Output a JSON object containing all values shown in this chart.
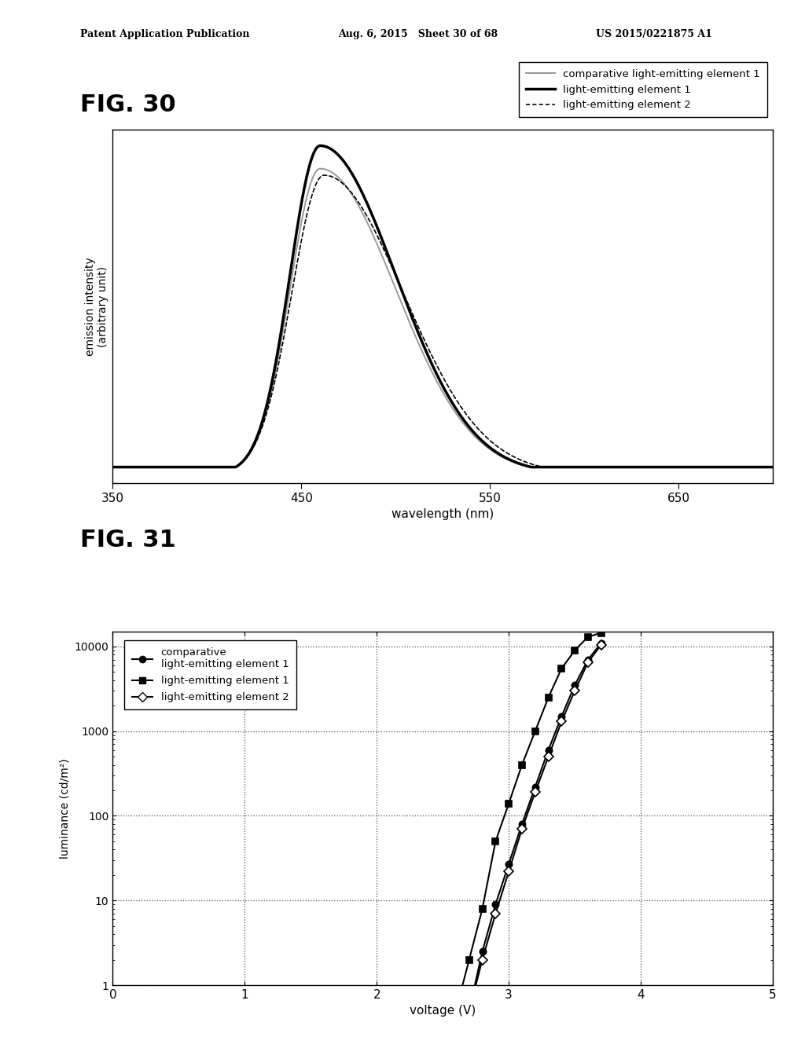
{
  "fig30": {
    "xlabel": "wavelength (nm)",
    "ylabel": "emission intensity\n(arbitrary unit)",
    "xlim": [
      350,
      700
    ],
    "xticks": [
      350,
      450,
      550,
      650
    ],
    "comp_color": "#999999",
    "elem1_color": "#000000",
    "elem2_color": "#000000"
  },
  "fig31": {
    "xlabel": "voltage (V)",
    "ylabel": "luminance (cd/m²)",
    "xlim": [
      0,
      5
    ],
    "xticks": [
      0,
      1,
      2,
      3,
      4,
      5
    ],
    "ylim": [
      1,
      15000
    ]
  },
  "header": "Patent Application Publication",
  "header2": "Aug. 6, 2015   Sheet 30 of 68",
  "header3": "US 2015/0221875 A1",
  "fig30_label": "FIG. 30",
  "fig31_label": "FIG. 31",
  "bg": "#ffffff"
}
